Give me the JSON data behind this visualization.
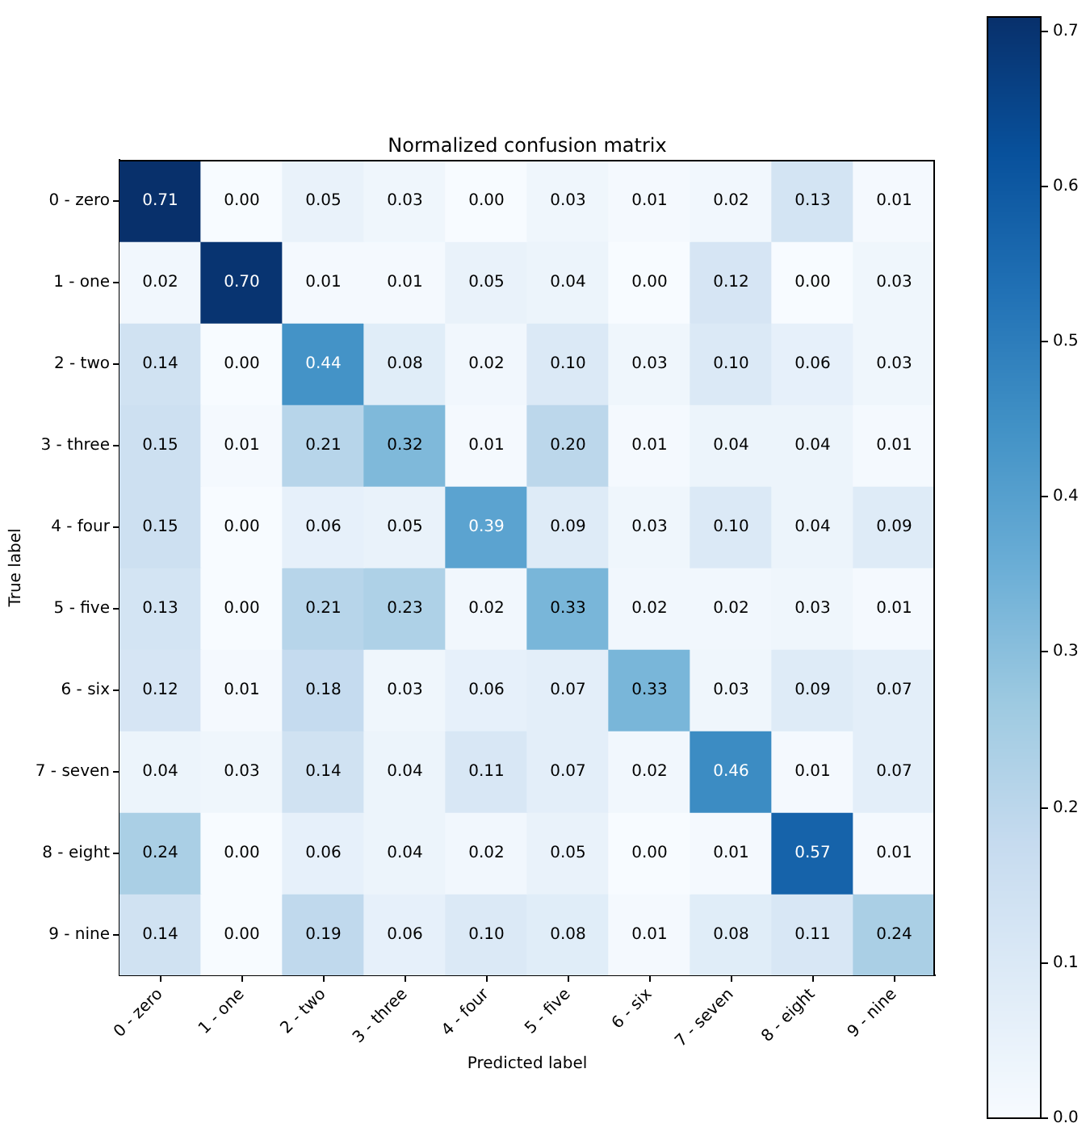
{
  "chart_data": {
    "type": "heatmap",
    "title": "Normalized confusion matrix",
    "xlabel": "Predicted label",
    "ylabel": "True label",
    "categories": [
      "0 - zero",
      "1 - one",
      "2 - two",
      "3 - three",
      "4 - four",
      "5 - five",
      "6 - six",
      "7 - seven",
      "8 - eight",
      "9 - nine"
    ],
    "y_categories": [
      "0 - zero",
      "1 - one",
      "2 - two",
      "3 - three",
      "4 - four",
      "5 - five",
      "6 - six",
      "7 - seven",
      "8 - eight",
      "9 - nine"
    ],
    "cells": [
      [
        0.71,
        0.0,
        0.05,
        0.03,
        0.0,
        0.03,
        0.01,
        0.02,
        0.13,
        0.01
      ],
      [
        0.02,
        0.7,
        0.01,
        0.01,
        0.05,
        0.04,
        0.0,
        0.12,
        0.0,
        0.03
      ],
      [
        0.14,
        0.0,
        0.44,
        0.08,
        0.02,
        0.1,
        0.03,
        0.1,
        0.06,
        0.03
      ],
      [
        0.15,
        0.01,
        0.21,
        0.32,
        0.01,
        0.2,
        0.01,
        0.04,
        0.04,
        0.01
      ],
      [
        0.15,
        0.0,
        0.06,
        0.05,
        0.39,
        0.09,
        0.03,
        0.1,
        0.04,
        0.09
      ],
      [
        0.13,
        0.0,
        0.21,
        0.23,
        0.02,
        0.33,
        0.02,
        0.02,
        0.03,
        0.01
      ],
      [
        0.12,
        0.01,
        0.18,
        0.03,
        0.06,
        0.07,
        0.33,
        0.03,
        0.09,
        0.07
      ],
      [
        0.04,
        0.03,
        0.14,
        0.04,
        0.11,
        0.07,
        0.02,
        0.46,
        0.01,
        0.07
      ],
      [
        0.24,
        0.0,
        0.06,
        0.04,
        0.02,
        0.05,
        0.0,
        0.01,
        0.57,
        0.01
      ],
      [
        0.14,
        0.0,
        0.19,
        0.06,
        0.1,
        0.08,
        0.01,
        0.08,
        0.11,
        0.24
      ]
    ],
    "cell_labels": [
      [
        "0.71",
        "0.00",
        "0.05",
        "0.03",
        "0.00",
        "0.03",
        "0.01",
        "0.02",
        "0.13",
        "0.01"
      ],
      [
        "0.02",
        "0.70",
        "0.01",
        "0.01",
        "0.05",
        "0.04",
        "0.00",
        "0.12",
        "0.00",
        "0.03"
      ],
      [
        "0.14",
        "0.00",
        "0.44",
        "0.08",
        "0.02",
        "0.10",
        "0.03",
        "0.10",
        "0.06",
        "0.03"
      ],
      [
        "0.15",
        "0.01",
        "0.21",
        "0.32",
        "0.01",
        "0.20",
        "0.01",
        "0.04",
        "0.04",
        "0.01"
      ],
      [
        "0.15",
        "0.00",
        "0.06",
        "0.05",
        "0.39",
        "0.09",
        "0.03",
        "0.10",
        "0.04",
        "0.09"
      ],
      [
        "0.13",
        "0.00",
        "0.21",
        "0.23",
        "0.02",
        "0.33",
        "0.02",
        "0.02",
        "0.03",
        "0.01"
      ],
      [
        "0.12",
        "0.01",
        "0.18",
        "0.03",
        "0.06",
        "0.07",
        "0.33",
        "0.03",
        "0.09",
        "0.07"
      ],
      [
        "0.04",
        "0.03",
        "0.14",
        "0.04",
        "0.11",
        "0.07",
        "0.02",
        "0.46",
        "0.01",
        "0.07"
      ],
      [
        "0.24",
        "0.00",
        "0.06",
        "0.04",
        "0.02",
        "0.05",
        "0.00",
        "0.01",
        "0.57",
        "0.01"
      ],
      [
        "0.14",
        "0.00",
        "0.19",
        "0.06",
        "0.10",
        "0.08",
        "0.01",
        "0.08",
        "0.11",
        "0.24"
      ]
    ],
    "clim": [
      0,
      0.71
    ],
    "cticks": [
      {
        "value": 0,
        "label": "0.0"
      },
      0.1,
      0.2,
      0.3,
      0.4,
      0.5,
      0.6,
      0.7
    ]
  }
}
